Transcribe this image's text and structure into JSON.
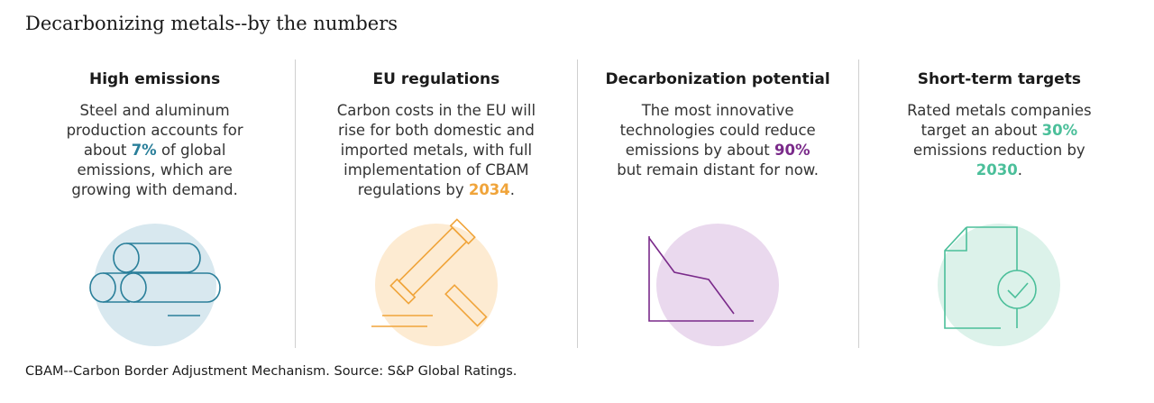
{
  "title": "Decarbonizing metals--by the numbers",
  "panels": [
    {
      "heading": "High emissions",
      "text_before": "Steel and aluminum production accounts for about ",
      "highlight": "7%",
      "text_after": " of global emissions, which are growing with demand.",
      "icon": "metal-pipes-icon",
      "accent": "#2a7f9a",
      "circle": "#d8e8ef"
    },
    {
      "heading": "EU regulations",
      "text_before": "Carbon costs in the EU will rise for both domestic and imported metals, with full implementation of CBAM regulations by ",
      "highlight": "2034",
      "text_after": ".",
      "icon": "gavel-icon",
      "accent": "#f0a43a",
      "circle": "#fdebd2"
    },
    {
      "heading": "Decarbonization potential",
      "text_before": "The most innovative technologies could reduce emissions by about ",
      "highlight": "90%",
      "text_after": " but remain distant for now.",
      "icon": "declining-line-chart-icon",
      "accent": "#7a2a8a",
      "circle": "#ead9ee"
    },
    {
      "heading": "Short-term targets",
      "text_before": "Rated metals companies target an about ",
      "highlight": "30%",
      "text_mid": " emissions reduction by ",
      "highlight2": "2030",
      "text_after": ".",
      "icon": "document-checkmark-icon",
      "accent": "#4bbf9a",
      "circle": "#dcf2ea"
    }
  ],
  "footnote": "CBAM--Carbon Border Adjustment Mechanism. Source: S&P Global Ratings."
}
